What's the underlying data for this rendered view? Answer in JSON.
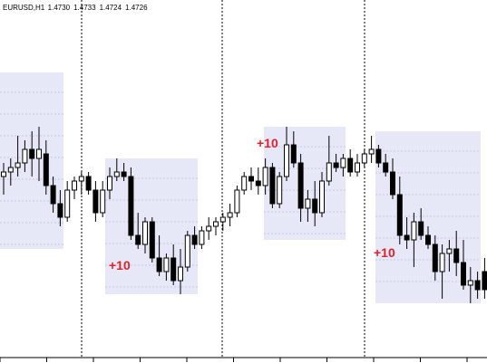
{
  "chart_data": {
    "type": "candlestick",
    "title": "EURUSD,H1",
    "header_values": [
      {
        "value": 1.473,
        "label": "1.4730"
      },
      {
        "value": 1.4733,
        "label": "1.4733"
      },
      {
        "value": 1.4724,
        "label": "1.4724"
      },
      {
        "value": 1.4726,
        "label": "1.4726"
      }
    ],
    "ylim": [
      1.4711,
      1.479
    ],
    "up_color": "#ffffff",
    "down_color": "#000000",
    "zone_color": "#e6e8f7",
    "annotation_color": "#e0202a",
    "candles": [
      [
        1.4751,
        1.4754,
        1.4747,
        1.4752
      ],
      [
        1.4752,
        1.4755,
        1.4749,
        1.4753
      ],
      [
        1.4753,
        1.476,
        1.4751,
        1.4754
      ],
      [
        1.4754,
        1.4759,
        1.4752,
        1.4757
      ],
      [
        1.4757,
        1.4761,
        1.4751,
        1.4755
      ],
      [
        1.4755,
        1.4762,
        1.475,
        1.4757
      ],
      [
        1.4756,
        1.4759,
        1.4747,
        1.4749
      ],
      [
        1.4749,
        1.4751,
        1.4743,
        1.4745
      ],
      [
        1.4745,
        1.4748,
        1.474,
        1.4742
      ],
      [
        1.4742,
        1.475,
        1.4741,
        1.4748
      ],
      [
        1.4748,
        1.4751,
        1.4746,
        1.475
      ],
      [
        1.475,
        1.4752,
        1.4747,
        1.4751
      ],
      [
        1.4751,
        1.4752,
        1.4747,
        1.4748
      ],
      [
        1.4748,
        1.475,
        1.4741,
        1.4743
      ],
      [
        1.4743,
        1.475,
        1.4742,
        1.4748
      ],
      [
        1.4748,
        1.4753,
        1.4746,
        1.4751
      ],
      [
        1.4751,
        1.4755,
        1.475,
        1.4752
      ],
      [
        1.4752,
        1.4754,
        1.475,
        1.4751
      ],
      [
        1.4751,
        1.4753,
        1.4737,
        1.4738
      ],
      [
        1.4738,
        1.4743,
        1.4735,
        1.4736
      ],
      [
        1.4736,
        1.4742,
        1.4734,
        1.4741
      ],
      [
        1.4741,
        1.4742,
        1.4732,
        1.4733
      ],
      [
        1.4733,
        1.4738,
        1.4729,
        1.473
      ],
      [
        1.473,
        1.4734,
        1.4728,
        1.4733
      ],
      [
        1.4733,
        1.4736,
        1.4727,
        1.4728
      ],
      [
        1.4728,
        1.4735,
        1.4725,
        1.4731
      ],
      [
        1.4731,
        1.4739,
        1.473,
        1.4738
      ],
      [
        1.4738,
        1.474,
        1.4735,
        1.4736
      ],
      [
        1.4736,
        1.474,
        1.4735,
        1.4739
      ],
      [
        1.4739,
        1.4742,
        1.4737,
        1.474
      ],
      [
        1.474,
        1.4742,
        1.4738,
        1.4741
      ],
      [
        1.4741,
        1.4743,
        1.4739,
        1.4742
      ],
      [
        1.4742,
        1.4745,
        1.474,
        1.4743
      ],
      [
        1.4743,
        1.4749,
        1.4742,
        1.4748
      ],
      [
        1.4748,
        1.4752,
        1.4747,
        1.4751
      ],
      [
        1.4751,
        1.4753,
        1.4748,
        1.475
      ],
      [
        1.475,
        1.4753,
        1.4747,
        1.4749
      ],
      [
        1.4749,
        1.4755,
        1.4747,
        1.4753
      ],
      [
        1.4753,
        1.4754,
        1.4744,
        1.4745
      ],
      [
        1.4745,
        1.4752,
        1.4744,
        1.4751
      ],
      [
        1.4751,
        1.4762,
        1.475,
        1.4758
      ],
      [
        1.4758,
        1.4761,
        1.4753,
        1.4754
      ],
      [
        1.4754,
        1.4756,
        1.4741,
        1.4744
      ],
      [
        1.4744,
        1.4748,
        1.4741,
        1.4746
      ],
      [
        1.4746,
        1.475,
        1.474,
        1.4743
      ],
      [
        1.4743,
        1.4752,
        1.4742,
        1.475
      ],
      [
        1.475,
        1.476,
        1.4749,
        1.4754
      ],
      [
        1.4754,
        1.4756,
        1.4752,
        1.4753
      ],
      [
        1.4753,
        1.4756,
        1.4751,
        1.4755
      ],
      [
        1.4755,
        1.4757,
        1.4751,
        1.4752
      ],
      [
        1.4752,
        1.4756,
        1.4751,
        1.4754
      ],
      [
        1.4754,
        1.4757,
        1.4753,
        1.4756
      ],
      [
        1.4756,
        1.476,
        1.4754,
        1.4757
      ],
      [
        1.4757,
        1.4758,
        1.4753,
        1.4754
      ],
      [
        1.4754,
        1.4756,
        1.4751,
        1.4752
      ],
      [
        1.4752,
        1.4755,
        1.4746,
        1.4747
      ],
      [
        1.4747,
        1.4751,
        1.4736,
        1.4738
      ],
      [
        1.4738,
        1.4742,
        1.4735,
        1.4737
      ],
      [
        1.4737,
        1.4743,
        1.4731,
        1.4741
      ],
      [
        1.4741,
        1.4744,
        1.4737,
        1.4738
      ],
      [
        1.4738,
        1.474,
        1.4735,
        1.4736
      ],
      [
        1.4736,
        1.4738,
        1.4728,
        1.473
      ],
      [
        1.473,
        1.4736,
        1.4724,
        1.4734
      ],
      [
        1.4734,
        1.4737,
        1.473,
        1.4735
      ],
      [
        1.4735,
        1.4739,
        1.4729,
        1.4732
      ],
      [
        1.4732,
        1.4737,
        1.4726,
        1.4727
      ],
      [
        1.4727,
        1.4731,
        1.4723,
        1.4728
      ],
      [
        1.4728,
        1.473,
        1.4724,
        1.4726
      ],
      [
        1.473,
        1.4733,
        1.4724,
        1.4726
      ]
    ],
    "zones": [
      {
        "high": 1.4774,
        "low": 1.4735
      },
      {
        "high": 1.4755,
        "low": 1.4725
      },
      {
        "high": 1.4762,
        "low": 1.4737
      },
      {
        "high": 1.4761,
        "low": 1.4723
      }
    ],
    "annotations": [
      "+10",
      "+10",
      "+10"
    ]
  }
}
